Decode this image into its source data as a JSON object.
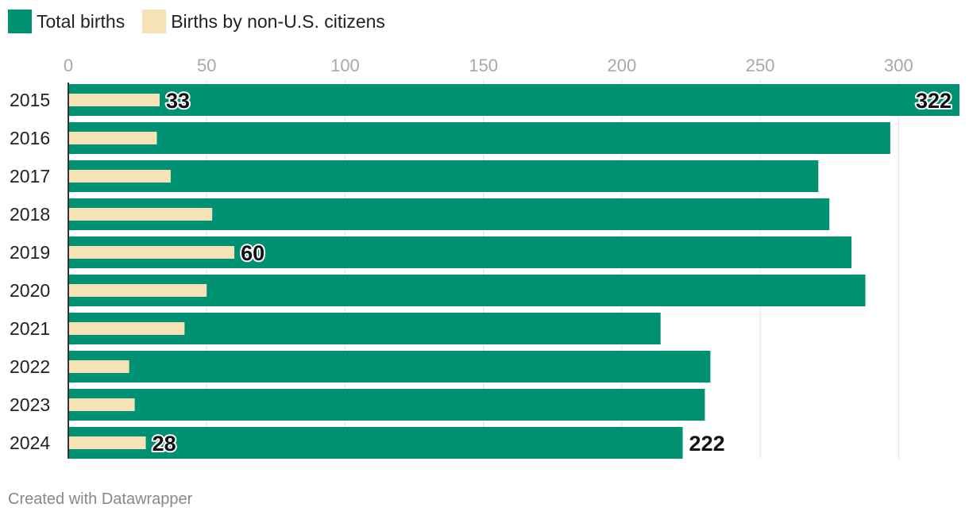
{
  "legend": {
    "total_label": "Total births",
    "noncitizen_label": "Births by non-U.S. citizens"
  },
  "colors": {
    "total": "#009172",
    "noncitizen": "#f5e2b6",
    "grid": "#e3e3e3",
    "tick": "#a8a8a8",
    "label": "#222222"
  },
  "credit": "Created with Datawrapper",
  "chart_data": {
    "type": "bar",
    "orientation": "horizontal",
    "categories": [
      "2015",
      "2016",
      "2017",
      "2018",
      "2019",
      "2020",
      "2021",
      "2022",
      "2023",
      "2024"
    ],
    "series": [
      {
        "name": "Total births",
        "values": [
          322,
          297,
          271,
          275,
          283,
          288,
          214,
          232,
          230,
          222
        ]
      },
      {
        "name": "Births by non-U.S. citizens",
        "values": [
          33,
          32,
          37,
          52,
          60,
          50,
          42,
          22,
          24,
          28
        ]
      }
    ],
    "x_ticks": [
      0,
      50,
      100,
      150,
      200,
      250,
      300
    ],
    "xlim": [
      0,
      322
    ],
    "data_labels": [
      {
        "series": 0,
        "index": 0,
        "text": "322",
        "placement": "inside-end"
      },
      {
        "series": 1,
        "index": 0,
        "text": "33",
        "placement": "outside-end"
      },
      {
        "series": 1,
        "index": 4,
        "text": "60",
        "placement": "outside-end"
      },
      {
        "series": 1,
        "index": 9,
        "text": "28",
        "placement": "outside-end"
      },
      {
        "series": 0,
        "index": 9,
        "text": "222",
        "placement": "outside-end"
      }
    ],
    "grid": true,
    "legend_position": "top-left"
  }
}
